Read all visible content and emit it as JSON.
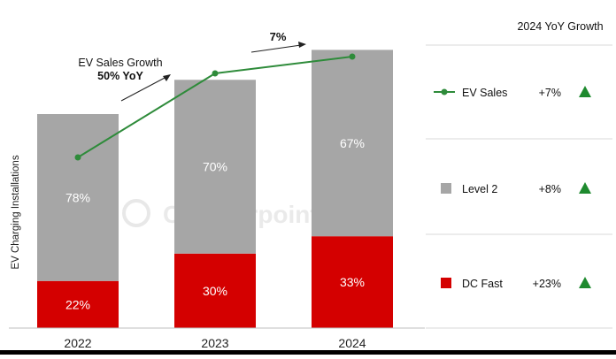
{
  "chart_data": {
    "type": "bar",
    "stacked": true,
    "ylabel": "EV Charging Installations",
    "categories": [
      "2022",
      "2023",
      "2024"
    ],
    "series": [
      {
        "name": "DC Fast",
        "values": [
          22,
          30,
          33
        ],
        "labels": [
          "22%",
          "30%",
          "33%"
        ],
        "color": "#d40000"
      },
      {
        "name": "Level 2",
        "values": [
          78,
          70,
          67
        ],
        "labels": [
          "78%",
          "70%",
          "67%"
        ],
        "color": "#a6a6a6"
      }
    ],
    "totals_relative": [
      1.0,
      1.16,
      1.3
    ],
    "line": {
      "name": "EV Sales",
      "values": [
        100,
        150,
        160
      ],
      "color": "#2e8b3a"
    },
    "annotations": {
      "growth_2023_line1": "EV Sales Growth",
      "growth_2023_line2": "50% YoY",
      "growth_2024": "7%"
    },
    "legend": {
      "title": "2024 YoY Growth",
      "placement": "right",
      "items": [
        {
          "name": "EV Sales",
          "growth": "+7%",
          "symbol": "line-marker",
          "color": "#2e8b3a"
        },
        {
          "name": "Level 2",
          "growth": "+8%",
          "symbol": "square",
          "color": "#a6a6a6"
        },
        {
          "name": "DC Fast",
          "growth": "+23%",
          "symbol": "square",
          "color": "#d40000"
        }
      ],
      "arrow_color": "#1e8a2e"
    },
    "watermark": "Counterpoint",
    "grid": false
  }
}
